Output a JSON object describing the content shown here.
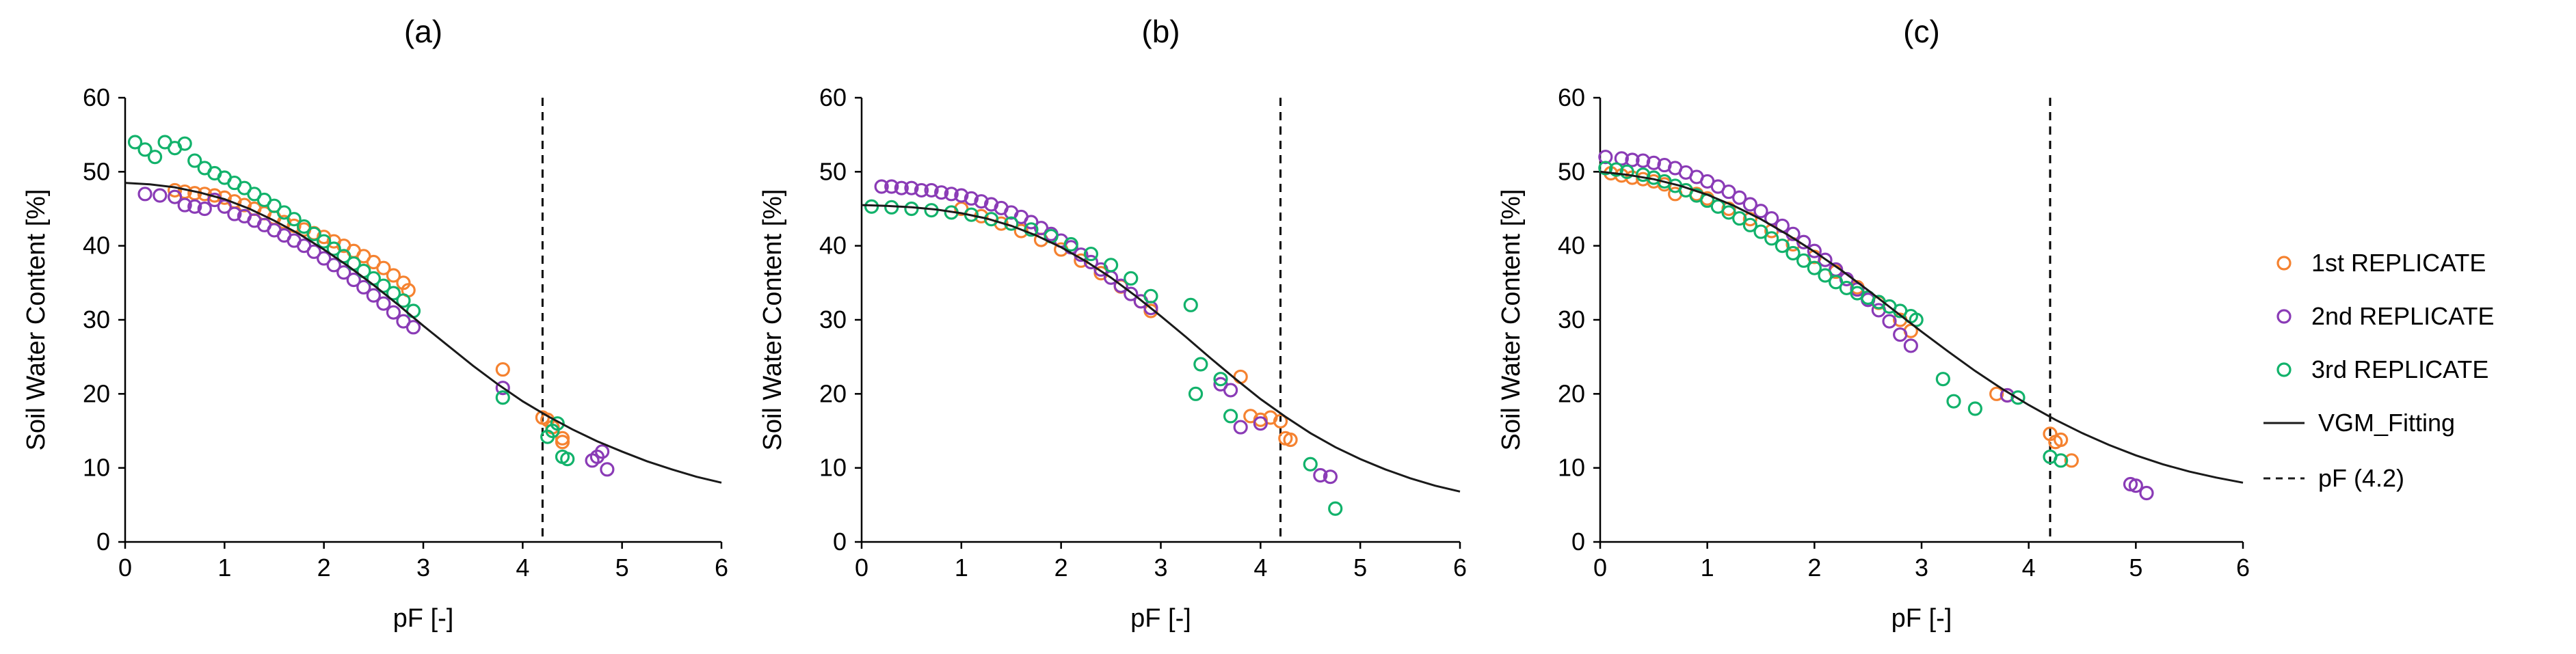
{
  "colors": {
    "rep1": "#f58230",
    "rep2": "#8a3bb6",
    "rep3": "#12b26b",
    "fit": "#1a1a1a",
    "axis": "#000000"
  },
  "legend": {
    "items": [
      {
        "key": "rep1",
        "label": "1st REPLICATE",
        "kind": "marker"
      },
      {
        "key": "rep2",
        "label": "2nd REPLICATE",
        "kind": "marker"
      },
      {
        "key": "rep3",
        "label": "3rd REPLICATE",
        "kind": "marker"
      },
      {
        "key": "fit",
        "label": "VGM_Fitting",
        "kind": "line"
      },
      {
        "key": "pf",
        "label": "pF (4.2)",
        "kind": "dashed"
      }
    ]
  },
  "chart_data": [
    {
      "type": "scatter",
      "title": "(a)",
      "xlabel": "pF [-]",
      "ylabel": "Soil Water Content [%]",
      "xlim": [
        0,
        6
      ],
      "ylim": [
        0,
        60
      ],
      "xticks": [
        "0",
        "1",
        "2",
        "3",
        "4",
        "5",
        "6"
      ],
      "yticks": [
        "0",
        "10",
        "20",
        "30",
        "40",
        "50",
        "60"
      ],
      "vline_pF": 4.2,
      "fit_curve": {
        "name": "VGM_Fitting",
        "x": [
          0,
          0.25,
          0.5,
          0.75,
          1.0,
          1.25,
          1.5,
          1.75,
          2.0,
          2.25,
          2.5,
          2.75,
          3.0,
          3.25,
          3.5,
          3.75,
          4.0,
          4.25,
          4.5,
          4.75,
          5.0,
          5.25,
          5.5,
          5.75,
          6.0
        ],
        "y": [
          48.5,
          48.3,
          47.9,
          47.2,
          46.3,
          45.0,
          43.4,
          41.6,
          39.5,
          37.2,
          34.7,
          32.0,
          29.2,
          26.5,
          23.8,
          21.3,
          19.0,
          17.0,
          15.2,
          13.6,
          12.2,
          10.9,
          9.8,
          8.8,
          8.0
        ]
      },
      "series": [
        {
          "name": "1st REPLICATE",
          "key": "rep1",
          "x": [
            0.5,
            0.6,
            0.7,
            0.8,
            0.9,
            1.0,
            1.1,
            1.2,
            1.3,
            1.4,
            1.5,
            1.6,
            1.7,
            1.8,
            1.9,
            2.0,
            2.1,
            2.2,
            2.3,
            2.4,
            2.5,
            2.6,
            2.7,
            2.8,
            2.85,
            3.8,
            4.2,
            4.25,
            4.3,
            4.4,
            4.4
          ],
          "y": [
            47.5,
            47.3,
            47.1,
            47.0,
            46.8,
            46.5,
            46.0,
            45.5,
            45.0,
            44.4,
            43.8,
            43.2,
            42.7,
            42.2,
            41.7,
            41.2,
            40.6,
            40.0,
            39.3,
            38.6,
            37.8,
            37.0,
            36.0,
            35.0,
            34.0,
            23.3,
            16.8,
            16.5,
            15.5,
            14.0,
            13.5
          ]
        },
        {
          "name": "2nd REPLICATE",
          "key": "rep2",
          "x": [
            0.2,
            0.35,
            0.5,
            0.6,
            0.7,
            0.8,
            0.9,
            1.0,
            1.1,
            1.2,
            1.3,
            1.4,
            1.5,
            1.6,
            1.7,
            1.8,
            1.9,
            2.0,
            2.1,
            2.2,
            2.3,
            2.4,
            2.5,
            2.6,
            2.7,
            2.8,
            2.9,
            3.8,
            4.7,
            4.75,
            4.8,
            4.85
          ],
          "y": [
            47.0,
            46.8,
            46.6,
            45.5,
            45.3,
            45.0,
            46.2,
            45.3,
            44.3,
            44.0,
            43.4,
            42.8,
            42.1,
            41.4,
            40.7,
            40.0,
            39.2,
            38.3,
            37.4,
            36.4,
            35.4,
            34.4,
            33.3,
            32.2,
            31.0,
            29.8,
            29.0,
            20.8,
            11.0,
            11.5,
            12.2,
            9.8
          ]
        },
        {
          "name": "3rd REPLICATE",
          "key": "rep3",
          "x": [
            0.1,
            0.2,
            0.3,
            0.4,
            0.5,
            0.6,
            0.7,
            0.8,
            0.9,
            1.0,
            1.1,
            1.2,
            1.3,
            1.4,
            1.5,
            1.6,
            1.7,
            1.8,
            1.9,
            2.0,
            2.1,
            2.2,
            2.3,
            2.4,
            2.5,
            2.6,
            2.7,
            2.8,
            2.9,
            3.8,
            4.25,
            4.3,
            4.35,
            4.4,
            4.45
          ],
          "y": [
            54.0,
            53.0,
            52.0,
            54.0,
            53.2,
            53.8,
            51.5,
            50.5,
            49.8,
            49.2,
            48.5,
            47.8,
            47.0,
            46.2,
            45.4,
            44.5,
            43.6,
            42.6,
            41.6,
            40.6,
            39.6,
            38.6,
            37.6,
            36.6,
            35.6,
            34.6,
            33.6,
            32.6,
            31.2,
            19.5,
            14.2,
            15.0,
            16.0,
            11.5,
            11.2
          ]
        }
      ]
    },
    {
      "type": "scatter",
      "title": "(b)",
      "xlabel": "pF [-]",
      "ylabel": "Soil Water Content [%]",
      "xlim": [
        0,
        6
      ],
      "ylim": [
        0,
        60
      ],
      "xticks": [
        "0",
        "1",
        "2",
        "3",
        "4",
        "5",
        "6"
      ],
      "yticks": [
        "0",
        "10",
        "20",
        "30",
        "40",
        "50",
        "60"
      ],
      "vline_pF": 4.2,
      "fit_curve": {
        "name": "VGM_Fitting",
        "x": [
          0,
          0.25,
          0.5,
          0.75,
          1.0,
          1.25,
          1.5,
          1.75,
          2.0,
          2.25,
          2.5,
          2.75,
          3.0,
          3.25,
          3.5,
          3.75,
          4.0,
          4.25,
          4.5,
          4.75,
          5.0,
          5.25,
          5.5,
          5.75,
          6.0
        ],
        "y": [
          45.5,
          45.4,
          45.2,
          44.9,
          44.4,
          43.7,
          42.7,
          41.4,
          39.8,
          37.9,
          35.7,
          33.2,
          30.5,
          27.7,
          24.8,
          22.0,
          19.3,
          16.9,
          14.7,
          12.8,
          11.2,
          9.8,
          8.6,
          7.6,
          6.8
        ]
      },
      "series": [
        {
          "name": "1st REPLICATE",
          "key": "rep1",
          "x": [
            1.0,
            1.2,
            1.4,
            1.6,
            1.8,
            2.0,
            2.2,
            2.4,
            2.6,
            2.8,
            2.9,
            3.8,
            3.9,
            4.0,
            4.1,
            4.2,
            4.25,
            4.3
          ],
          "y": [
            45.0,
            44.0,
            43.0,
            42.0,
            40.8,
            39.5,
            38.0,
            36.3,
            34.5,
            32.5,
            31.2,
            22.3,
            17.0,
            16.5,
            16.8,
            16.3,
            14.0,
            13.8
          ]
        },
        {
          "name": "2nd REPLICATE",
          "key": "rep2",
          "x": [
            0.2,
            0.3,
            0.4,
            0.5,
            0.6,
            0.7,
            0.8,
            0.9,
            1.0,
            1.1,
            1.2,
            1.3,
            1.4,
            1.5,
            1.6,
            1.7,
            1.8,
            1.9,
            2.0,
            2.1,
            2.2,
            2.3,
            2.4,
            2.5,
            2.6,
            2.7,
            2.8,
            2.9,
            3.6,
            3.7,
            3.8,
            4.0,
            4.6,
            4.7
          ],
          "y": [
            48.0,
            48.0,
            47.8,
            47.8,
            47.5,
            47.5,
            47.2,
            47.0,
            46.8,
            46.4,
            46.0,
            45.6,
            45.1,
            44.5,
            43.9,
            43.2,
            42.4,
            41.6,
            40.7,
            39.8,
            38.8,
            37.8,
            36.8,
            35.7,
            34.6,
            33.5,
            32.5,
            31.6,
            21.3,
            20.5,
            15.5,
            16.0,
            9.0,
            8.8
          ]
        },
        {
          "name": "3rd REPLICATE",
          "key": "rep3",
          "x": [
            0.1,
            0.3,
            0.5,
            0.7,
            0.9,
            1.1,
            1.3,
            1.5,
            1.7,
            1.9,
            2.1,
            2.3,
            2.5,
            2.7,
            2.9,
            3.3,
            3.35,
            3.4,
            3.6,
            3.7,
            4.5,
            4.75
          ],
          "y": [
            45.3,
            45.2,
            45.0,
            44.8,
            44.5,
            44.2,
            43.6,
            43.0,
            42.2,
            41.3,
            40.2,
            38.9,
            37.4,
            35.6,
            33.2,
            32.0,
            20.0,
            24.0,
            22.0,
            17.0,
            10.5,
            4.5
          ]
        }
      ]
    },
    {
      "type": "scatter",
      "title": "(c)",
      "xlabel": "pF [-]",
      "ylabel": "Soil Water Content [%]",
      "xlim": [
        0,
        6
      ],
      "ylim": [
        0,
        60
      ],
      "xticks": [
        "0",
        "1",
        "2",
        "3",
        "4",
        "5",
        "6"
      ],
      "yticks": [
        "0",
        "10",
        "20",
        "30",
        "40",
        "50",
        "60"
      ],
      "vline_pF": 4.2,
      "fit_curve": {
        "name": "VGM_Fitting",
        "x": [
          0,
          0.25,
          0.5,
          0.75,
          1.0,
          1.25,
          1.5,
          1.75,
          2.0,
          2.25,
          2.5,
          2.75,
          3.0,
          3.25,
          3.5,
          3.75,
          4.0,
          4.25,
          4.5,
          4.75,
          5.0,
          5.25,
          5.5,
          5.75,
          6.0
        ],
        "y": [
          50.0,
          49.6,
          49.0,
          48.1,
          46.9,
          45.4,
          43.6,
          41.5,
          39.2,
          36.7,
          34.0,
          31.2,
          28.4,
          25.7,
          23.1,
          20.7,
          18.5,
          16.5,
          14.7,
          13.1,
          11.7,
          10.5,
          9.5,
          8.7,
          8.0
        ]
      },
      "series": [
        {
          "name": "1st REPLICATE",
          "key": "rep1",
          "x": [
            0.1,
            0.2,
            0.3,
            0.4,
            0.5,
            0.6,
            0.7,
            0.8,
            0.9,
            1.0,
            1.2,
            1.4,
            1.6,
            1.8,
            2.0,
            2.2,
            2.4,
            2.6,
            2.8,
            2.9,
            3.7,
            3.8,
            4.2,
            4.25,
            4.3,
            4.4
          ],
          "y": [
            49.8,
            49.5,
            49.2,
            49.0,
            48.7,
            48.3,
            47.0,
            47.5,
            47.0,
            46.4,
            45.0,
            43.6,
            42.0,
            40.2,
            38.5,
            36.5,
            34.4,
            32.3,
            30.0,
            28.5,
            20.0,
            19.8,
            14.6,
            13.5,
            13.8,
            11.0
          ]
        },
        {
          "name": "2nd REPLICATE",
          "key": "rep2",
          "x": [
            0.05,
            0.2,
            0.3,
            0.4,
            0.5,
            0.6,
            0.7,
            0.8,
            0.9,
            1.0,
            1.1,
            1.2,
            1.3,
            1.4,
            1.5,
            1.6,
            1.7,
            1.8,
            1.9,
            2.0,
            2.1,
            2.2,
            2.3,
            2.4,
            2.5,
            2.6,
            2.7,
            2.8,
            2.9,
            3.8,
            4.95,
            5.0,
            5.1
          ],
          "y": [
            52.0,
            51.8,
            51.6,
            51.5,
            51.2,
            50.9,
            50.5,
            49.9,
            49.3,
            48.7,
            48.0,
            47.3,
            46.5,
            45.6,
            44.7,
            43.7,
            42.7,
            41.6,
            40.5,
            39.3,
            38.1,
            36.8,
            35.5,
            34.1,
            32.7,
            31.3,
            29.8,
            28.0,
            26.5,
            19.8,
            7.8,
            7.6,
            6.6
          ]
        },
        {
          "name": "3rd REPLICATE",
          "key": "rep3",
          "x": [
            0.05,
            0.15,
            0.25,
            0.4,
            0.5,
            0.6,
            0.7,
            0.8,
            0.9,
            1.0,
            1.1,
            1.2,
            1.3,
            1.4,
            1.5,
            1.6,
            1.7,
            1.8,
            1.9,
            2.0,
            2.1,
            2.2,
            2.3,
            2.4,
            2.5,
            2.6,
            2.7,
            2.8,
            2.9,
            2.95,
            3.2,
            3.3,
            3.5,
            3.9,
            4.2,
            4.3
          ],
          "y": [
            50.5,
            50.3,
            50.0,
            49.6,
            49.2,
            48.7,
            48.1,
            47.5,
            46.8,
            46.1,
            45.3,
            44.5,
            43.7,
            42.8,
            41.9,
            41.0,
            40.0,
            39.0,
            38.0,
            37.0,
            36.0,
            35.1,
            34.3,
            33.6,
            33.0,
            32.4,
            31.8,
            31.2,
            30.5,
            30.0,
            22.0,
            19.0,
            18.0,
            19.5,
            11.5,
            11.0
          ]
        }
      ]
    }
  ]
}
